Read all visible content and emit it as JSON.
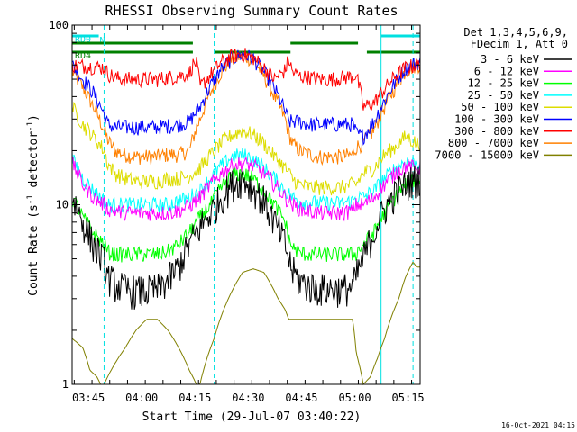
{
  "chart_data": {
    "type": "line",
    "title": "RHESSI Observing Summary Count Rates",
    "xlabel": "Start Time (29-Jul-07 03:40:22)",
    "ylabel_main": "Count Rate (s",
    "ylabel_sup": "-1",
    "ylabel_tail": " detector",
    "ylabel_end": ")",
    "yscale": "log",
    "ylim": [
      1,
      100
    ],
    "xlim_minutes": [
      0,
      98
    ],
    "x_ticks": [
      {
        "label": "03:45",
        "m": 4.6
      },
      {
        "label": "04:00",
        "m": 19.6
      },
      {
        "label": "04:15",
        "m": 34.6
      },
      {
        "label": "04:30",
        "m": 49.6
      },
      {
        "label": "04:45",
        "m": 64.6
      },
      {
        "label": "05:00",
        "m": 79.6
      },
      {
        "label": "05:15",
        "m": 94.6
      }
    ],
    "y_tick_labels": [
      {
        "label": "1",
        "v": 1
      },
      {
        "label": "10",
        "v": 10
      },
      {
        "label": "100",
        "v": 100
      }
    ],
    "legend": {
      "header_line1": "Det 1,3,4,5,6,9,",
      "header_line2": "FDecim 1, Att 0",
      "entries": [
        {
          "label": "3 - 6 keV",
          "color": "#000000"
        },
        {
          "label": "6 - 12 keV",
          "color": "#ff00ff"
        },
        {
          "label": "12 - 25 keV",
          "color": "#00ff00"
        },
        {
          "label": "25 - 50 keV",
          "color": "#00ffff"
        },
        {
          "label": "50 - 100 keV",
          "color": "#dddd00"
        },
        {
          "label": "100 - 300 keV",
          "color": "#0000ff"
        },
        {
          "label": "300 - 800 keV",
          "color": "#ff0000"
        },
        {
          "label": "800 - 7000 keV",
          "color": "#ff8000"
        },
        {
          "label": "7000 - 15000 keV",
          "color": "#808000"
        }
      ]
    },
    "flag_bars": [
      {
        "label": "RD0",
        "color": "#00e0e0",
        "level": 2,
        "segments": [
          [
            0,
            7.5
          ],
          [
            87,
            98
          ]
        ]
      },
      {
        "label": "N",
        "color": "#00e0e0",
        "level": 1,
        "segments": [
          [
            7.5,
            8.5
          ]
        ]
      },
      {
        "label": "RD4",
        "color": "#008000",
        "level": 0,
        "segments": [
          [
            0,
            34
          ],
          [
            40,
            61.5
          ],
          [
            83,
            98
          ]
        ]
      },
      {
        "label": "",
        "color": "#008000",
        "level": 1,
        "segments": [
          [
            0,
            34
          ],
          [
            61.5,
            80.5
          ]
        ]
      }
    ],
    "vertical_markers": [
      {
        "m": 0.0,
        "style": "solid",
        "color": "#00e0e0"
      },
      {
        "m": 9.0,
        "style": "dashed",
        "color": "#00e0e0"
      },
      {
        "m": 40.0,
        "style": "dashed",
        "color": "#00e0e0"
      },
      {
        "m": 87.0,
        "style": "solid",
        "color": "#00e0e0"
      },
      {
        "m": 96.0,
        "style": "dashed",
        "color": "#00e0e0"
      }
    ],
    "series": [
      {
        "name": "800 - 7000 keV",
        "color": "#ff8000",
        "m": [
          0,
          3,
          6,
          9,
          10,
          12,
          15,
          18,
          21,
          24,
          27,
          30,
          33,
          36,
          39,
          42,
          45,
          48,
          51,
          54,
          57,
          60,
          61,
          62,
          64,
          67,
          70,
          73,
          76,
          79,
          80,
          82,
          85,
          88,
          91,
          94,
          97
        ],
        "values": [
          55,
          45,
          35,
          26,
          23,
          20,
          19,
          18.5,
          18.5,
          18.5,
          19,
          19,
          20,
          30,
          42,
          55,
          64,
          68,
          64,
          52,
          40,
          30,
          25,
          22,
          20,
          19,
          18.5,
          18.5,
          18.5,
          19,
          21,
          22,
          26,
          35,
          45,
          56,
          60
        ]
      },
      {
        "name": "100 - 300 keV",
        "color": "#0000ff",
        "m": [
          0,
          3,
          6,
          9,
          10,
          12,
          15,
          18,
          21,
          24,
          27,
          30,
          33,
          36,
          39,
          42,
          45,
          48,
          51,
          54,
          57,
          60,
          61,
          62,
          64,
          67,
          70,
          73,
          76,
          79,
          80,
          82,
          85,
          88,
          91,
          94,
          97
        ],
        "values": [
          60,
          50,
          42,
          32,
          28,
          27,
          27,
          27,
          27,
          27,
          27.5,
          28,
          29,
          35,
          46,
          57,
          65,
          69,
          65,
          55,
          44,
          33,
          29,
          29,
          29,
          28,
          28,
          28,
          28,
          28,
          25,
          24,
          29,
          38,
          48,
          58,
          62
        ]
      },
      {
        "name": "300 - 800 keV",
        "color": "#ff0000",
        "m": [
          0,
          9,
          10,
          12,
          15,
          18,
          21,
          24,
          27,
          30,
          33,
          34,
          35,
          36,
          39,
          42,
          45,
          48,
          51,
          54,
          57,
          60,
          61,
          62,
          64,
          67,
          70,
          73,
          76,
          79,
          80,
          82,
          85,
          88,
          91,
          94,
          97
        ],
        "values": [
          60,
          58,
          54,
          51,
          50,
          50,
          50,
          50,
          51,
          52,
          54,
          60,
          62,
          45,
          53,
          62,
          67,
          69,
          66,
          58,
          50,
          56,
          65,
          55,
          52,
          51,
          50,
          50,
          51,
          52,
          53,
          35,
          37,
          44,
          52,
          58,
          60
        ]
      },
      {
        "name": "50 - 100 keV",
        "color": "#dddd00",
        "m": [
          0,
          3,
          6,
          9,
          10,
          12,
          15,
          18,
          21,
          24,
          27,
          30,
          33,
          36,
          39,
          42,
          45,
          48,
          51,
          54,
          57,
          60,
          61,
          62,
          64,
          67,
          70,
          73,
          76,
          79,
          80,
          82,
          85,
          88,
          91,
          94,
          97
        ],
        "values": [
          35,
          28,
          24,
          20,
          17,
          15,
          14,
          13.5,
          13.5,
          13.5,
          14,
          14,
          14.5,
          16,
          19,
          22,
          24.5,
          26,
          24.5,
          22,
          18.5,
          16,
          15,
          14,
          13,
          12.5,
          12.5,
          12.5,
          12.5,
          13,
          13,
          15,
          16,
          19,
          21,
          24,
          22
        ]
      },
      {
        "name": "25 - 50 keV",
        "color": "#00ffff",
        "m": [
          0,
          3,
          6,
          9,
          10,
          12,
          15,
          18,
          21,
          24,
          27,
          30,
          33,
          36,
          39,
          42,
          45,
          48,
          51,
          54,
          57,
          60,
          61,
          62,
          64,
          67,
          70,
          73,
          76,
          79,
          80,
          82,
          85,
          88,
          91,
          94,
          97
        ],
        "values": [
          18,
          14,
          12,
          10.5,
          10,
          10,
          10,
          10,
          10,
          10,
          10,
          10.5,
          11,
          12,
          14,
          16.5,
          18.5,
          19,
          18,
          16,
          14,
          12,
          11.5,
          11,
          10.5,
          10.3,
          10.2,
          10.2,
          10.2,
          10.5,
          11,
          11,
          12,
          14,
          16,
          17.5,
          17
        ]
      },
      {
        "name": "6 - 12 keV",
        "color": "#ff00ff",
        "m": [
          0,
          3,
          6,
          9,
          10,
          12,
          15,
          18,
          21,
          24,
          27,
          30,
          33,
          36,
          39,
          42,
          45,
          48,
          51,
          54,
          57,
          60,
          61,
          62,
          64,
          67,
          70,
          73,
          76,
          79,
          80,
          82,
          85,
          88,
          91,
          94,
          97
        ],
        "values": [
          17,
          13,
          11,
          10,
          9.5,
          9.3,
          9,
          9,
          9,
          9,
          9,
          9.3,
          9.8,
          11,
          13,
          15,
          16.5,
          17,
          16.5,
          15,
          13,
          11,
          10.5,
          10,
          9.5,
          9.2,
          9,
          9,
          9,
          9.3,
          10,
          10,
          11,
          13,
          15,
          16.5,
          16
        ]
      },
      {
        "name": "12 - 25 keV",
        "color": "#00ff00",
        "m": [
          0,
          3,
          6,
          9,
          10,
          12,
          15,
          18,
          21,
          24,
          27,
          30,
          33,
          36,
          39,
          42,
          45,
          48,
          51,
          54,
          57,
          60,
          61,
          62,
          64,
          67,
          70,
          73,
          76,
          79,
          80,
          82,
          85,
          88,
          91,
          94,
          97
        ],
        "values": [
          11,
          8.5,
          7,
          6,
          5.5,
          5.3,
          5.3,
          5.3,
          5.3,
          5.3,
          5.5,
          6,
          7,
          8.5,
          10,
          12.5,
          14.5,
          15,
          14,
          12,
          10,
          8,
          6.5,
          5.8,
          5.4,
          5.3,
          5.3,
          5.3,
          5.3,
          5.3,
          5.4,
          6,
          7,
          9,
          11,
          13,
          14
        ]
      },
      {
        "name": "3 - 6 keV",
        "color": "#000000",
        "m": [
          0,
          3,
          6,
          9,
          10,
          12,
          15,
          18,
          21,
          24,
          27,
          30,
          33,
          36,
          39,
          42,
          45,
          48,
          51,
          54,
          57,
          60,
          61,
          62,
          64,
          67,
          70,
          73,
          76,
          79,
          80,
          82,
          85,
          88,
          91,
          94,
          97
        ],
        "values": [
          11,
          8,
          6,
          4.8,
          4,
          3.6,
          3.4,
          3.3,
          3.3,
          3.4,
          3.8,
          4.5,
          6,
          7.5,
          9,
          11,
          13,
          14,
          12.5,
          10.5,
          8,
          6,
          5,
          4.3,
          3.8,
          3.5,
          3.4,
          3.4,
          3.4,
          3.5,
          4,
          5,
          7,
          9.5,
          11.5,
          13,
          14
        ]
      },
      {
        "name": "7000 - 15000 keV",
        "color": "#808000",
        "m": [
          0,
          3,
          5,
          7,
          8,
          9,
          12,
          15,
          18,
          21,
          24,
          27,
          30,
          33,
          35,
          36,
          38,
          40,
          42,
          45,
          48,
          51,
          54,
          56,
          58,
          60,
          61,
          62,
          64,
          67,
          70,
          73,
          76,
          79,
          80,
          82,
          84,
          86,
          88,
          90,
          92,
          94,
          96,
          97
        ],
        "values": [
          1.8,
          1.6,
          1.2,
          1.1,
          1.0,
          1.0,
          1.3,
          1.6,
          2.0,
          2.3,
          2.3,
          2.0,
          1.6,
          1.2,
          1.0,
          1.0,
          1.4,
          1.8,
          2.4,
          3.3,
          4.2,
          4.4,
          4.2,
          3.6,
          3.0,
          2.6,
          2.3,
          2.3,
          2.3,
          2.3,
          2.3,
          2.3,
          2.3,
          2.3,
          1.5,
          1.0,
          1.1,
          1.4,
          1.8,
          2.4,
          3.0,
          4.0,
          4.8,
          4.5
        ]
      }
    ],
    "timestamp": "16-Oct-2021 04:15"
  }
}
